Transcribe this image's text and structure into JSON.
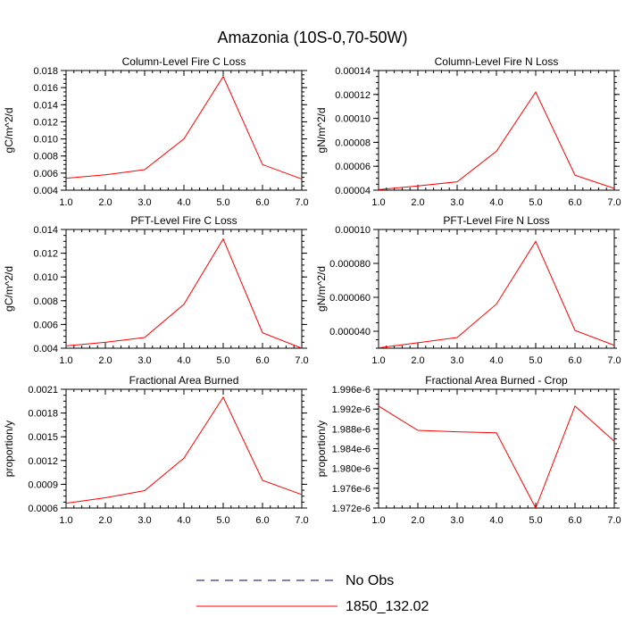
{
  "title": "Amazonia (10S-0,70-50W)",
  "colors": {
    "model": "#ff0000",
    "obs": "#000066",
    "axis": "#000000"
  },
  "legend": [
    {
      "label": "No Obs",
      "style": "dashed",
      "color": "#000066"
    },
    {
      "label": "1850_132.02",
      "style": "solid",
      "color": "#ff0000"
    }
  ],
  "chart_data": [
    {
      "type": "line",
      "title": "Column-Level Fire C Loss",
      "xlabel": "",
      "ylabel": "gC/m^2/d",
      "x": [
        1,
        2,
        3,
        4,
        5,
        6,
        7
      ],
      "xlim": [
        1,
        7
      ],
      "xticks": [
        "1.0",
        "2.0",
        "3.0",
        "4.0",
        "5.0",
        "6.0",
        "7.0"
      ],
      "ylim": [
        0.004,
        0.018
      ],
      "yticks": [
        0.004,
        0.006,
        0.008,
        0.01,
        0.012,
        0.014,
        0.016,
        0.018
      ],
      "yticklabels": [
        "0.004",
        "0.006",
        "0.008",
        "0.010",
        "0.012",
        "0.014",
        "0.016",
        "0.018"
      ],
      "series": [
        {
          "name": "1850_132.02",
          "values": [
            0.0054,
            0.0058,
            0.0064,
            0.01,
            0.0173,
            0.007,
            0.0053
          ]
        }
      ]
    },
    {
      "type": "line",
      "title": "Column-Level Fire N Loss",
      "xlabel": "",
      "ylabel": "gN/m^2/d",
      "x": [
        1,
        2,
        3,
        4,
        5,
        6,
        7
      ],
      "xlim": [
        1,
        7
      ],
      "xticks": [
        "1.0",
        "2.0",
        "3.0",
        "4.0",
        "5.0",
        "6.0",
        "7.0"
      ],
      "ylim": [
        4e-05,
        0.00014
      ],
      "yticks": [
        4e-05,
        6e-05,
        8e-05,
        0.0001,
        0.00012,
        0.00014
      ],
      "yticklabels": [
        "0.00004",
        "0.00006",
        "0.00008",
        "0.00010",
        "0.00012",
        "0.00014"
      ],
      "series": [
        {
          "name": "1850_132.02",
          "values": [
            4.05e-05,
            4.35e-05,
            4.7e-05,
            7.25e-05,
            0.000122,
            5.25e-05,
            4.15e-05
          ]
        }
      ]
    },
    {
      "type": "line",
      "title": "PFT-Level Fire C Loss",
      "xlabel": "",
      "ylabel": "gC/m^2/d",
      "x": [
        1,
        2,
        3,
        4,
        5,
        6,
        7
      ],
      "xlim": [
        1,
        7
      ],
      "xticks": [
        "1.0",
        "2.0",
        "3.0",
        "4.0",
        "5.0",
        "6.0",
        "7.0"
      ],
      "ylim": [
        0.004,
        0.014
      ],
      "yticks": [
        0.004,
        0.006,
        0.008,
        0.01,
        0.012,
        0.014
      ],
      "yticklabels": [
        "0.004",
        "0.006",
        "0.008",
        "0.010",
        "0.012",
        "0.014"
      ],
      "series": [
        {
          "name": "1850_132.02",
          "values": [
            0.0042,
            0.0045,
            0.0049,
            0.0077,
            0.0132,
            0.0053,
            0.004
          ]
        }
      ]
    },
    {
      "type": "line",
      "title": "PFT-Level Fire N Loss",
      "xlabel": "",
      "ylabel": "gN/m^2/d",
      "x": [
        1,
        2,
        3,
        4,
        5,
        6,
        7
      ],
      "xlim": [
        1,
        7
      ],
      "xticks": [
        "1.0",
        "2.0",
        "3.0",
        "4.0",
        "5.0",
        "6.0",
        "7.0"
      ],
      "ylim": [
        3e-05,
        0.0001
      ],
      "yticks": [
        4e-05,
        6e-05,
        8e-05,
        0.0001
      ],
      "yticklabels": [
        "0.000040",
        "0.000060",
        "0.000080",
        "0.00010"
      ],
      "series": [
        {
          "name": "1850_132.02",
          "values": [
            3.02e-05,
            3.32e-05,
            3.63e-05,
            5.6e-05,
            9.3e-05,
            4.05e-05,
            3.17e-05
          ]
        }
      ]
    },
    {
      "type": "line",
      "title": "Fractional Area Burned",
      "xlabel": "",
      "ylabel": "proportion/y",
      "x": [
        1,
        2,
        3,
        4,
        5,
        6,
        7
      ],
      "xlim": [
        1,
        7
      ],
      "xticks": [
        "1.0",
        "2.0",
        "3.0",
        "4.0",
        "5.0",
        "6.0",
        "7.0"
      ],
      "ylim": [
        0.0006,
        0.0021
      ],
      "yticks": [
        0.0006,
        0.0009,
        0.0012,
        0.0015,
        0.0018,
        0.0021
      ],
      "yticklabels": [
        "0.0006",
        "0.0009",
        "0.0012",
        "0.0015",
        "0.0018",
        "0.0021"
      ],
      "series": [
        {
          "name": "1850_132.02",
          "values": [
            0.00066,
            0.00073,
            0.00082,
            0.00123,
            0.002,
            0.00095,
            0.00077
          ]
        }
      ]
    },
    {
      "type": "line",
      "title": "Fractional Area Burned - Crop",
      "xlabel": "",
      "ylabel": "proportion/y",
      "x": [
        1,
        2,
        3,
        4,
        5,
        6,
        7
      ],
      "xlim": [
        1,
        7
      ],
      "xticks": [
        "1.0",
        "2.0",
        "3.0",
        "4.0",
        "5.0",
        "6.0",
        "7.0"
      ],
      "ylim": [
        1.972e-06,
        1.996e-06
      ],
      "yticks": [
        1.972e-06,
        1.976e-06,
        1.98e-06,
        1.984e-06,
        1.988e-06,
        1.992e-06,
        1.996e-06
      ],
      "yticklabels": [
        "1.972e-6",
        "1.976e-6",
        "1.980e-6",
        "1.984e-6",
        "1.988e-6",
        "1.992e-6",
        "1.996e-6"
      ],
      "series": [
        {
          "name": "1850_132.02",
          "values": [
            1.9926e-06,
            1.9877e-06,
            1.9874e-06,
            1.9872e-06,
            1.972e-06,
            1.9926e-06,
            1.9855e-06
          ]
        }
      ]
    }
  ]
}
